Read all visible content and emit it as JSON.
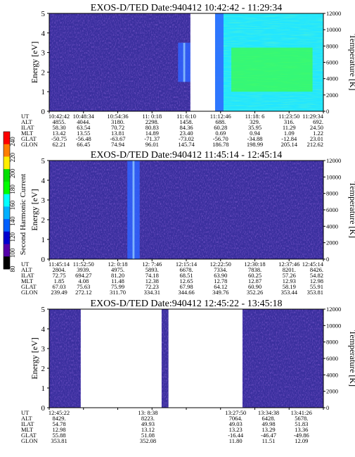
{
  "colors": {
    "background": "#3a2f9e",
    "accent_blue": "#2f63ff",
    "cyan": "#22e6ff",
    "green": "#3dff3d",
    "gap": "#ffffff"
  },
  "colorbar": {
    "label": "Second Harmonic Current",
    "ticks": [
      "240",
      "220",
      "200",
      "180",
      "160",
      "140",
      "120",
      "100",
      "80"
    ],
    "colors": [
      "#ff0000",
      "#ff7f00",
      "#ffee00",
      "#00e000",
      "#00ff00",
      "#00ffff",
      "#00b0ff",
      "#0060ff",
      "#0000d0",
      "#5500aa",
      "#000000"
    ]
  },
  "chart_data": [
    {
      "type": "heatmap",
      "title": "EXOS-D/TED   Date:940412   10:42:42 - 11:29:34",
      "ylabel": "Energy [eV]",
      "ylabel_right": "Temperature [K]",
      "ylim": [
        0,
        5
      ],
      "ylim_right": [
        0,
        12000
      ],
      "yticks": [
        "0",
        "1",
        "2",
        "3",
        "4",
        "5"
      ],
      "yticks_right": [
        "0",
        "2000",
        "4000",
        "6000",
        "8000",
        "10000",
        "12000"
      ],
      "gaps": [
        [
          0.515,
          0.605
        ]
      ],
      "features": [
        {
          "kind": "blue_band",
          "x0": 0.47,
          "x1": 0.515,
          "e0": 1.5,
          "e1": 3.5
        },
        {
          "kind": "cyan_region",
          "x0": 0.605,
          "x1": 1.0
        }
      ],
      "orbit": {
        "rows": [
          "UT",
          "ALT",
          "ILAT",
          "MLT",
          "GLAT",
          "GLON"
        ],
        "columns": [
          {
            "UT": "10:42:42",
            "ALT": "4855.",
            "ILAT": "58.30",
            "MLT": "13.42",
            "GLAT": "-50.75",
            "GLON": "62.21"
          },
          {
            "UT": "10:48:34",
            "ALT": "4044.",
            "ILAT": "63.54",
            "MLT": "13.55",
            "GLAT": "-56.48",
            "GLON": "66.45"
          },
          {
            "UT": "10:54:36",
            "ALT": "3180.",
            "ILAT": "70.72",
            "MLT": "13.81",
            "GLAT": "-63.67",
            "GLON": "74.94"
          },
          {
            "UT": "11: 0:18",
            "ALT": "2298.",
            "ILAT": "80.83",
            "MLT": "14.89",
            "GLAT": "-71.37",
            "GLON": "96.01"
          },
          {
            "UT": "11: 6:10",
            "ALT": "1458.",
            "ILAT": "84.36",
            "MLT": "23.40",
            "GLAT": "-73.02",
            "GLON": "145.74"
          },
          {
            "UT": "11:12:46",
            "ALT": "688.",
            "ILAT": "60.28",
            "MLT": "0.69",
            "GLAT": "-56.70",
            "GLON": "186.78"
          },
          {
            "UT": "11:18: 6",
            "ALT": "329.",
            "ILAT": "35.95",
            "MLT": "0.94",
            "GLAT": "-34.88",
            "GLON": "198.99"
          },
          {
            "UT": "11:23:50",
            "ALT": "316.",
            "ILAT": "11.29",
            "MLT": "1.09",
            "GLAT": "-12.84",
            "GLON": "205.14"
          },
          {
            "UT": "11:29:34",
            "ALT": "692.",
            "ILAT": "24.50",
            "MLT": "1.22",
            "GLAT": "23.01",
            "GLON": "212.62"
          }
        ]
      }
    },
    {
      "type": "heatmap",
      "title": "EXOS-D/TED   Date:940412   11:45:14 - 12:45:14",
      "ylabel": "Energy [eV]",
      "ylabel_right": "Temperature [K]",
      "ylim": [
        0,
        5
      ],
      "ylim_right": [
        0,
        12000
      ],
      "yticks": [
        "0",
        "1",
        "2",
        "3",
        "4",
        "5"
      ],
      "yticks_right": [
        "0",
        "2000",
        "4000",
        "6000",
        "8000",
        "10000",
        "12000"
      ],
      "gaps": [],
      "features": [
        {
          "kind": "blue_band",
          "x0": 0.285,
          "x1": 0.33,
          "e0": 0,
          "e1": 5
        }
      ],
      "orbit": {
        "rows": [
          "UT",
          "ALT",
          "ILAT",
          "MLT",
          "GLAT",
          "GLON"
        ],
        "columns": [
          {
            "UT": "11:45:14",
            "ALT": "2804.",
            "ILAT": "72.75",
            "MLT": "1.85",
            "GLAT": "67.03",
            "GLON": "239.49"
          },
          {
            "UT": "11:52:50",
            "ALT": "3939.",
            "ILAT": "694.27",
            "MLT": "4.08",
            "GLAT": "75.63",
            "GLON": "272.12"
          },
          {
            "UT": "12: 0:18",
            "ALT": "4975.",
            "ILAT": "81.20",
            "MLT": "11.48",
            "GLAT": "75.99",
            "GLON": "311.70"
          },
          {
            "UT": "12: 7:46",
            "ALT": "5893.",
            "ILAT": "74.18",
            "MLT": "12.38",
            "GLAT": "72.23",
            "GLON": "334.31"
          },
          {
            "UT": "12:15:14",
            "ALT": "6678.",
            "ILAT": "68.51",
            "MLT": "12.65",
            "GLAT": "67.98",
            "GLON": "344.66"
          },
          {
            "UT": "12:22:50",
            "ALT": "7334.",
            "ILAT": "63.90",
            "MLT": "12.78",
            "GLAT": "64.12",
            "GLON": "349.76"
          },
          {
            "UT": "12:30:18",
            "ALT": "7838.",
            "ILAT": "60.25",
            "MLT": "12.87",
            "GLAT": "60.90",
            "GLON": "352.26"
          },
          {
            "UT": "12:37:46",
            "ALT": "8201.",
            "ILAT": "57.26",
            "MLT": "12.93",
            "GLAT": "58.19",
            "GLON": "353.44"
          },
          {
            "UT": "12:45:14",
            "ALT": "8426.",
            "ILAT": "54.82",
            "MLT": "12.98",
            "GLAT": "55.91",
            "GLON": "353.81"
          }
        ]
      }
    },
    {
      "type": "heatmap",
      "title": "EXOS-D/TED   Date:940412   12:45:22 - 13:45:18",
      "ylabel": "Energy [eV]",
      "ylabel_right": "Temperature [K]",
      "ylim": [
        0,
        5
      ],
      "ylim_right": [
        0,
        12000
      ],
      "yticks": [
        "0",
        "1",
        "2",
        "3",
        "4",
        "5"
      ],
      "yticks_right": [
        "0",
        "2000",
        "4000",
        "6000",
        "8000",
        "10000",
        "12000"
      ],
      "gaps": [
        [
          0.115,
          0.41
        ],
        [
          0.435,
          0.705
        ]
      ],
      "features": [],
      "orbit": {
        "rows": [
          "UT",
          "ALT",
          "ILAT",
          "MLT",
          "GLAT",
          "GLON"
        ],
        "columns": [
          {
            "UT": "12:45:22",
            "ALT": "8429.",
            "ILAT": "54.78",
            "MLT": "12.98",
            "GLAT": "55.88",
            "GLON": "353.81"
          },
          {
            "UT": "13: 8:38",
            "ALT": "8223.",
            "ILAT": "49.93",
            "MLT": "13.12",
            "GLAT": "51.08",
            "GLON": "352.08"
          },
          {
            "UT": "13:27:50",
            "ALT": "7064.",
            "ILAT": "49.03",
            "MLT": "13.23",
            "GLAT": "-16.44",
            "GLON": "11.80"
          },
          {
            "UT": "13:34:38",
            "ALT": "6428.",
            "ILAT": "49.98",
            "MLT": "13.29",
            "GLAT": "-46.47",
            "GLON": "11.51"
          },
          {
            "UT": "13:41:26",
            "ALT": "5678.",
            "ILAT": "51.83",
            "MLT": "13.36",
            "GLAT": "-49.86",
            "GLON": "12.09"
          }
        ]
      }
    }
  ]
}
